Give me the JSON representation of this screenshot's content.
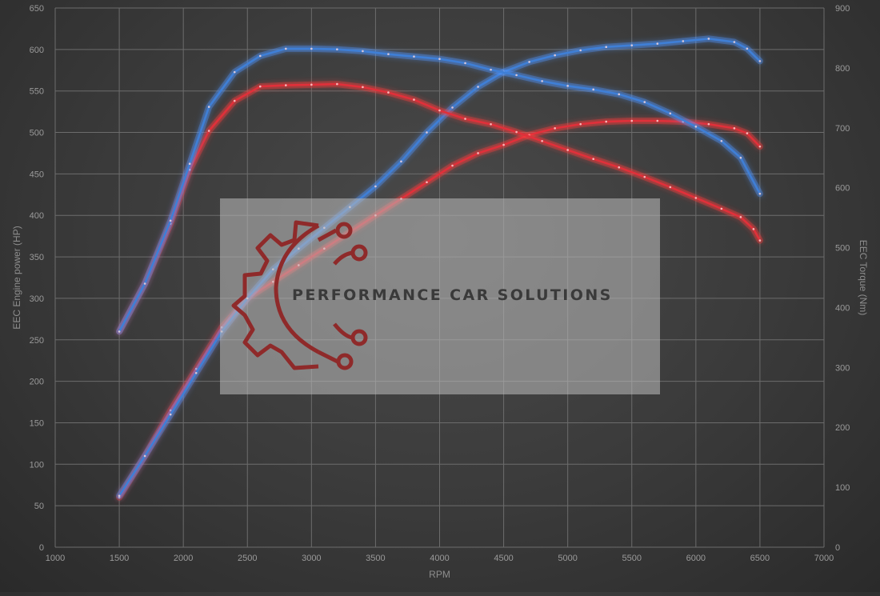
{
  "chart_data": {
    "type": "line",
    "xlabel": "RPM",
    "ylabel": "EEC Engine power (HP)",
    "y2label": "EEC Torque (Nm)",
    "xlim": [
      1000,
      7000
    ],
    "ylim": [
      0,
      650
    ],
    "y2lim": [
      0,
      900
    ],
    "x_ticks": [
      "1000",
      "1500",
      "2000",
      "2500",
      "3000",
      "3500",
      "4000",
      "4500",
      "5000",
      "5500",
      "6000",
      "6500",
      "7000"
    ],
    "y_ticks": [
      "0",
      "50",
      "100",
      "150",
      "200",
      "250",
      "300",
      "350",
      "400",
      "450",
      "500",
      "550",
      "600",
      "650"
    ],
    "y2_ticks": [
      "0",
      "100",
      "200",
      "300",
      "400",
      "500",
      "600",
      "700",
      "800",
      "900"
    ],
    "grid": true,
    "series": [
      {
        "axis": "left",
        "color": "#e0303a",
        "glow": "#ff3b3b",
        "points": [
          [
            1500,
            60
          ],
          [
            1700,
            110
          ],
          [
            1900,
            165
          ],
          [
            2100,
            215
          ],
          [
            2300,
            265
          ],
          [
            2500,
            300
          ],
          [
            2700,
            320
          ],
          [
            2900,
            340
          ],
          [
            3100,
            360
          ],
          [
            3300,
            380
          ],
          [
            3500,
            400
          ],
          [
            3700,
            420
          ],
          [
            3900,
            440
          ],
          [
            4100,
            460
          ],
          [
            4300,
            475
          ],
          [
            4500,
            485
          ],
          [
            4700,
            497
          ],
          [
            4900,
            505
          ],
          [
            5100,
            510
          ],
          [
            5300,
            513
          ],
          [
            5500,
            514
          ],
          [
            5700,
            514
          ],
          [
            5900,
            513
          ],
          [
            6100,
            510
          ],
          [
            6300,
            505
          ],
          [
            6400,
            499
          ],
          [
            6500,
            483
          ]
        ]
      },
      {
        "axis": "left",
        "color": "#3f7fd6",
        "glow": "#4f95ff",
        "points": [
          [
            1500,
            62
          ],
          [
            1700,
            110
          ],
          [
            1900,
            160
          ],
          [
            2100,
            210
          ],
          [
            2300,
            260
          ],
          [
            2500,
            300
          ],
          [
            2700,
            335
          ],
          [
            2900,
            360
          ],
          [
            3100,
            385
          ],
          [
            3300,
            410
          ],
          [
            3500,
            435
          ],
          [
            3700,
            465
          ],
          [
            3900,
            500
          ],
          [
            4100,
            530
          ],
          [
            4300,
            555
          ],
          [
            4500,
            573
          ],
          [
            4700,
            585
          ],
          [
            4900,
            593
          ],
          [
            5100,
            599
          ],
          [
            5300,
            603
          ],
          [
            5500,
            605
          ],
          [
            5700,
            607
          ],
          [
            5900,
            610
          ],
          [
            6100,
            613
          ],
          [
            6300,
            609
          ],
          [
            6400,
            601
          ],
          [
            6500,
            586
          ]
        ]
      },
      {
        "axis": "right",
        "color": "#e0303a",
        "glow": "#ff3b3b",
        "points": [
          [
            1500,
            360
          ],
          [
            1700,
            440
          ],
          [
            1900,
            540
          ],
          [
            2050,
            630
          ],
          [
            2200,
            695
          ],
          [
            2400,
            745
          ],
          [
            2600,
            769
          ],
          [
            2800,
            771
          ],
          [
            3000,
            772
          ],
          [
            3200,
            773
          ],
          [
            3400,
            768
          ],
          [
            3600,
            759
          ],
          [
            3800,
            747
          ],
          [
            4000,
            729
          ],
          [
            4200,
            715
          ],
          [
            4400,
            706
          ],
          [
            4600,
            693
          ],
          [
            4800,
            678
          ],
          [
            5000,
            663
          ],
          [
            5200,
            648
          ],
          [
            5400,
            634
          ],
          [
            5600,
            618
          ],
          [
            5800,
            601
          ],
          [
            6000,
            583
          ],
          [
            6200,
            565
          ],
          [
            6350,
            551
          ],
          [
            6450,
            531
          ],
          [
            6500,
            512
          ]
        ]
      },
      {
        "axis": "right",
        "color": "#3f7fd6",
        "glow": "#4f95ff",
        "points": [
          [
            1500,
            360
          ],
          [
            1700,
            440
          ],
          [
            1900,
            545
          ],
          [
            2050,
            640
          ],
          [
            2200,
            735
          ],
          [
            2400,
            793
          ],
          [
            2600,
            820
          ],
          [
            2800,
            832
          ],
          [
            3000,
            832
          ],
          [
            3200,
            831
          ],
          [
            3400,
            828
          ],
          [
            3600,
            823
          ],
          [
            3800,
            819
          ],
          [
            4000,
            815
          ],
          [
            4200,
            808
          ],
          [
            4400,
            797
          ],
          [
            4600,
            788
          ],
          [
            4800,
            778
          ],
          [
            5000,
            770
          ],
          [
            5200,
            764
          ],
          [
            5400,
            756
          ],
          [
            5600,
            743
          ],
          [
            5800,
            724
          ],
          [
            6000,
            702
          ],
          [
            6200,
            678
          ],
          [
            6350,
            650
          ],
          [
            6500,
            590
          ]
        ]
      }
    ]
  },
  "watermark": {
    "text": "PERFORMANCE CAR SOLUTIONS",
    "gear_color": "#8f2a2a"
  }
}
